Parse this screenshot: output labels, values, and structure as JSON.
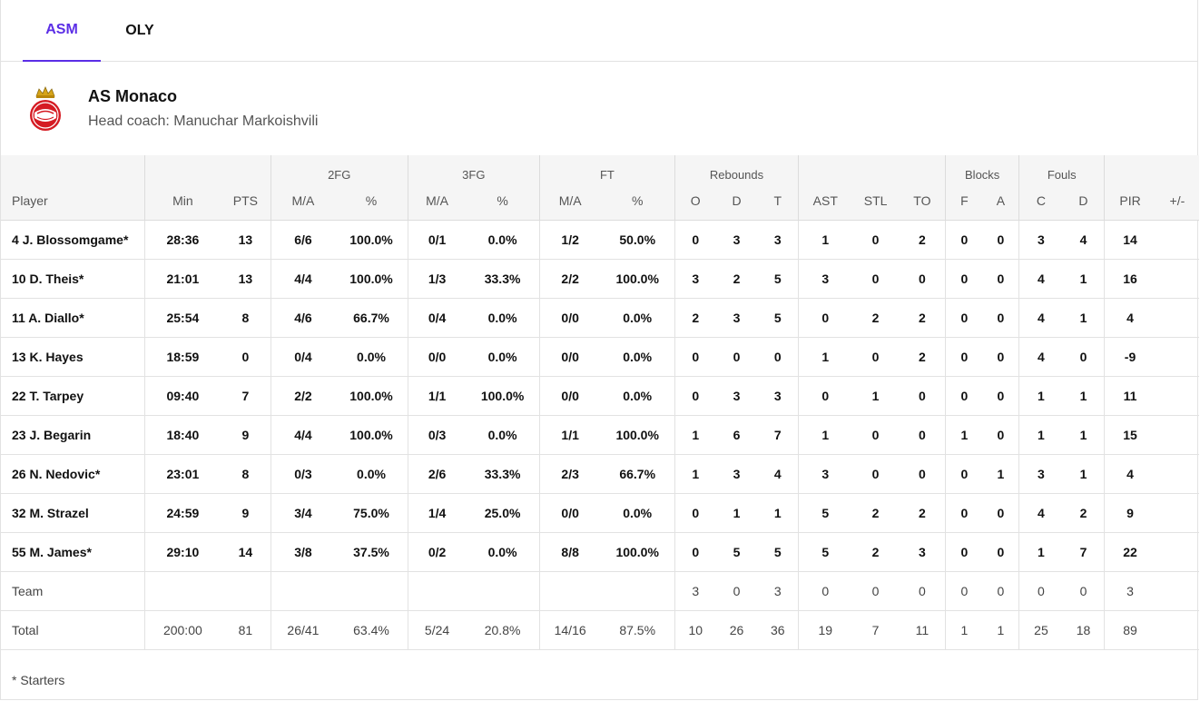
{
  "tabs": [
    {
      "label": "ASM",
      "active": true
    },
    {
      "label": "OLY",
      "active": false
    }
  ],
  "team": {
    "name": "AS Monaco",
    "coach": "Head coach: Manuchar Markoishvili",
    "logo_icon": "as-monaco-crest-icon",
    "accent_color": "#5b2ee6",
    "logo_color": "#d51b23"
  },
  "groups": [
    "2FG",
    "3FG",
    "FT",
    "Rebounds",
    "Blocks",
    "Fouls"
  ],
  "columns": [
    "Player",
    "Min",
    "PTS",
    "M/A",
    "%",
    "M/A",
    "%",
    "M/A",
    "%",
    "O",
    "D",
    "T",
    "AST",
    "STL",
    "TO",
    "F",
    "A",
    "C",
    "D",
    "PIR",
    "+/-"
  ],
  "players": [
    [
      "4",
      "J. Blossomgame*",
      "28:36",
      "13",
      "6/6",
      "100.0%",
      "0/1",
      "0.0%",
      "1/2",
      "50.0%",
      "0",
      "3",
      "3",
      "1",
      "0",
      "2",
      "0",
      "0",
      "3",
      "4",
      "14",
      ""
    ],
    [
      "10",
      "D. Theis*",
      "21:01",
      "13",
      "4/4",
      "100.0%",
      "1/3",
      "33.3%",
      "2/2",
      "100.0%",
      "3",
      "2",
      "5",
      "3",
      "0",
      "0",
      "0",
      "0",
      "4",
      "1",
      "16",
      ""
    ],
    [
      "11",
      "A. Diallo*",
      "25:54",
      "8",
      "4/6",
      "66.7%",
      "0/4",
      "0.0%",
      "0/0",
      "0.0%",
      "2",
      "3",
      "5",
      "0",
      "2",
      "2",
      "0",
      "0",
      "4",
      "1",
      "4",
      ""
    ],
    [
      "13",
      "K. Hayes",
      "18:59",
      "0",
      "0/4",
      "0.0%",
      "0/0",
      "0.0%",
      "0/0",
      "0.0%",
      "0",
      "0",
      "0",
      "1",
      "0",
      "2",
      "0",
      "0",
      "4",
      "0",
      "-9",
      ""
    ],
    [
      "22",
      "T. Tarpey",
      "09:40",
      "7",
      "2/2",
      "100.0%",
      "1/1",
      "100.0%",
      "0/0",
      "0.0%",
      "0",
      "3",
      "3",
      "0",
      "1",
      "0",
      "0",
      "0",
      "1",
      "1",
      "11",
      ""
    ],
    [
      "23",
      "J. Begarin",
      "18:40",
      "9",
      "4/4",
      "100.0%",
      "0/3",
      "0.0%",
      "1/1",
      "100.0%",
      "1",
      "6",
      "7",
      "1",
      "0",
      "0",
      "1",
      "0",
      "1",
      "1",
      "15",
      ""
    ],
    [
      "26",
      "N. Nedovic*",
      "23:01",
      "8",
      "0/3",
      "0.0%",
      "2/6",
      "33.3%",
      "2/3",
      "66.7%",
      "1",
      "3",
      "4",
      "3",
      "0",
      "0",
      "0",
      "1",
      "3",
      "1",
      "4",
      ""
    ],
    [
      "32",
      "M. Strazel",
      "24:59",
      "9",
      "3/4",
      "75.0%",
      "1/4",
      "25.0%",
      "0/0",
      "0.0%",
      "0",
      "1",
      "1",
      "5",
      "2",
      "2",
      "0",
      "0",
      "4",
      "2",
      "9",
      ""
    ],
    [
      "55",
      "M. James*",
      "29:10",
      "14",
      "3/8",
      "37.5%",
      "0/2",
      "0.0%",
      "8/8",
      "100.0%",
      "0",
      "5",
      "5",
      "5",
      "2",
      "3",
      "0",
      "0",
      "1",
      "7",
      "22",
      ""
    ]
  ],
  "team_row": [
    "Team",
    "",
    "",
    "",
    "",
    "",
    "",
    "",
    "",
    "3",
    "0",
    "3",
    "0",
    "0",
    "0",
    "0",
    "0",
    "0",
    "0",
    "3",
    ""
  ],
  "total_row": [
    "Total",
    "200:00",
    "81",
    "26/41",
    "63.4%",
    "5/24",
    "20.8%",
    "14/16",
    "87.5%",
    "10",
    "26",
    "36",
    "19",
    "7",
    "11",
    "1",
    "1",
    "25",
    "18",
    "89",
    ""
  ],
  "footnote": "* Starters"
}
